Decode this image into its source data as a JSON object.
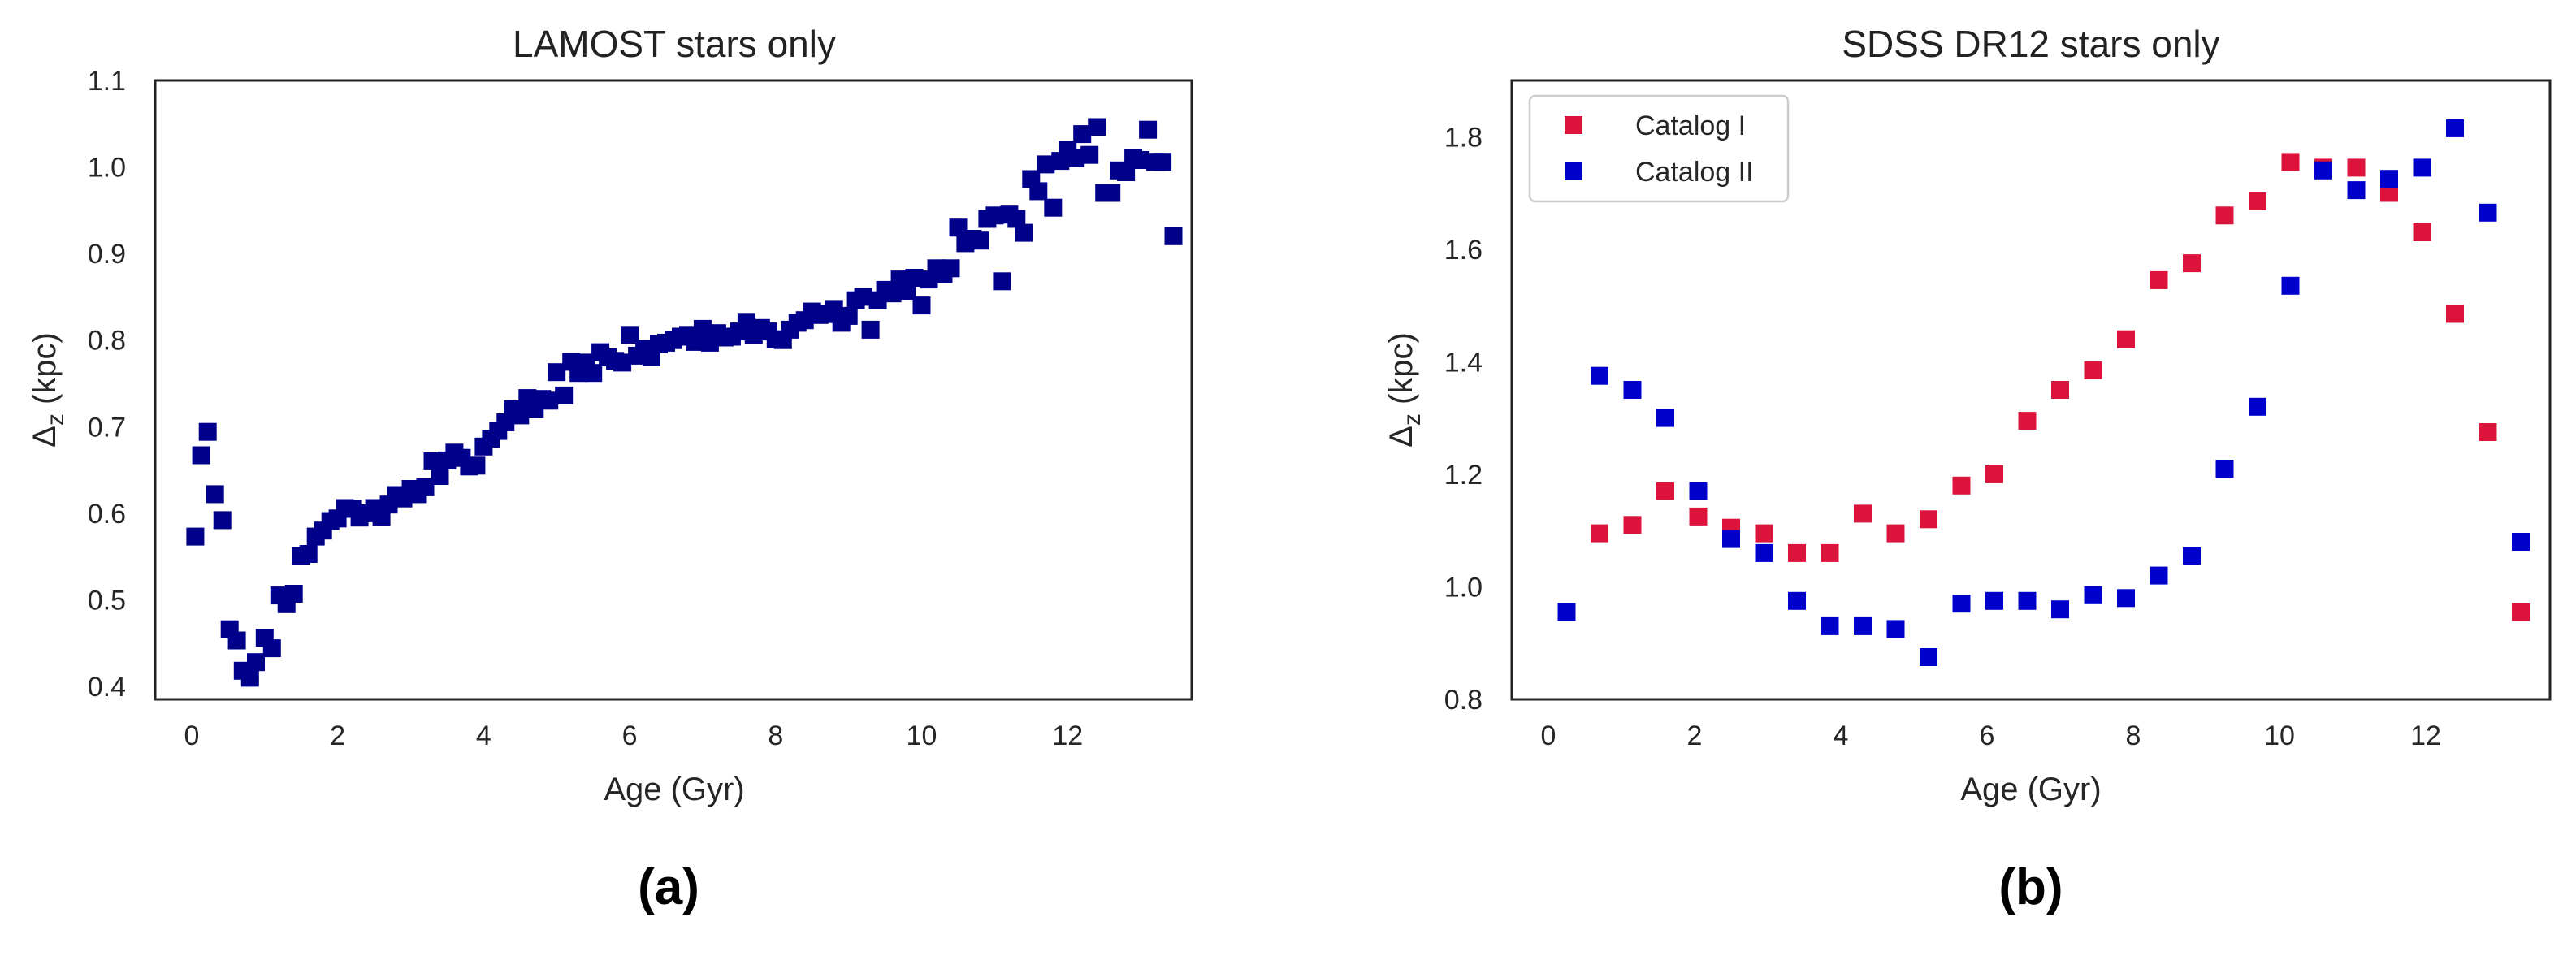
{
  "chart_data": [
    {
      "type": "scatter",
      "title": "LAMOST stars only",
      "xlabel": "Age (Gyr)",
      "ylabel_main": "Δ",
      "ylabel_sub": "z",
      "ylabel_unit": " (kpc)",
      "xlim": [
        -0.5,
        13.7
      ],
      "ylim": [
        0.385,
        1.1
      ],
      "xticks": [
        "0",
        "2",
        "4",
        "6",
        "8",
        "10",
        "12"
      ],
      "yticks": [
        "0.4",
        "0.5",
        "0.6",
        "0.7",
        "0.8",
        "0.9",
        "1.0",
        "1.1"
      ],
      "panel_label": "(a)",
      "grid": false,
      "series": [
        {
          "name": "LAMOST",
          "color": "#00008B",
          "points": [
            [
              0.05,
              0.573
            ],
            [
              0.13,
              0.667
            ],
            [
              0.22,
              0.694
            ],
            [
              0.32,
              0.622
            ],
            [
              0.42,
              0.592
            ],
            [
              0.52,
              0.466
            ],
            [
              0.62,
              0.453
            ],
            [
              0.7,
              0.418
            ],
            [
              0.8,
              0.41
            ],
            [
              0.88,
              0.428
            ],
            [
              1.0,
              0.456
            ],
            [
              1.1,
              0.444
            ],
            [
              1.2,
              0.505
            ],
            [
              1.3,
              0.495
            ],
            [
              1.4,
              0.507
            ],
            [
              1.5,
              0.551
            ],
            [
              1.6,
              0.553
            ],
            [
              1.7,
              0.573
            ],
            [
              1.8,
              0.58
            ],
            [
              1.9,
              0.591
            ],
            [
              2.0,
              0.594
            ],
            [
              2.1,
              0.606
            ],
            [
              2.2,
              0.605
            ],
            [
              2.3,
              0.595
            ],
            [
              2.4,
              0.6
            ],
            [
              2.5,
              0.606
            ],
            [
              2.6,
              0.596
            ],
            [
              2.7,
              0.61
            ],
            [
              2.8,
              0.621
            ],
            [
              2.9,
              0.617
            ],
            [
              3.0,
              0.628
            ],
            [
              3.1,
              0.622
            ],
            [
              3.2,
              0.63
            ],
            [
              3.3,
              0.66
            ],
            [
              3.4,
              0.643
            ],
            [
              3.5,
              0.661
            ],
            [
              3.6,
              0.67
            ],
            [
              3.7,
              0.664
            ],
            [
              3.8,
              0.654
            ],
            [
              3.9,
              0.655
            ],
            [
              4.0,
              0.677
            ],
            [
              4.1,
              0.686
            ],
            [
              4.2,
              0.695
            ],
            [
              4.3,
              0.705
            ],
            [
              4.4,
              0.72
            ],
            [
              4.5,
              0.713
            ],
            [
              4.6,
              0.733
            ],
            [
              4.7,
              0.72
            ],
            [
              4.8,
              0.732
            ],
            [
              4.9,
              0.73
            ],
            [
              5.0,
              0.763
            ],
            [
              5.1,
              0.736
            ],
            [
              5.2,
              0.775
            ],
            [
              5.3,
              0.762
            ],
            [
              5.4,
              0.774
            ],
            [
              5.5,
              0.762
            ],
            [
              5.6,
              0.786
            ],
            [
              5.7,
              0.78
            ],
            [
              5.8,
              0.776
            ],
            [
              5.9,
              0.774
            ],
            [
              6.0,
              0.806
            ],
            [
              6.1,
              0.782
            ],
            [
              6.2,
              0.79
            ],
            [
              6.3,
              0.78
            ],
            [
              6.4,
              0.795
            ],
            [
              6.5,
              0.797
            ],
            [
              6.6,
              0.8
            ],
            [
              6.7,
              0.804
            ],
            [
              6.8,
              0.806
            ],
            [
              6.9,
              0.798
            ],
            [
              7.0,
              0.813
            ],
            [
              7.1,
              0.797
            ],
            [
              7.2,
              0.808
            ],
            [
              7.3,
              0.803
            ],
            [
              7.4,
              0.804
            ],
            [
              7.5,
              0.81
            ],
            [
              7.6,
              0.821
            ],
            [
              7.7,
              0.806
            ],
            [
              7.8,
              0.814
            ],
            [
              7.9,
              0.81
            ],
            [
              8.0,
              0.801
            ],
            [
              8.1,
              0.8
            ],
            [
              8.2,
              0.812
            ],
            [
              8.3,
              0.82
            ],
            [
              8.4,
              0.823
            ],
            [
              8.5,
              0.833
            ],
            [
              8.6,
              0.829
            ],
            [
              8.7,
              0.83
            ],
            [
              8.8,
              0.836
            ],
            [
              8.9,
              0.82
            ],
            [
              9.0,
              0.828
            ],
            [
              9.1,
              0.846
            ],
            [
              9.2,
              0.85
            ],
            [
              9.3,
              0.812
            ],
            [
              9.4,
              0.846
            ],
            [
              9.5,
              0.858
            ],
            [
              9.6,
              0.854
            ],
            [
              9.7,
              0.87
            ],
            [
              9.8,
              0.857
            ],
            [
              9.9,
              0.872
            ],
            [
              10.0,
              0.84
            ],
            [
              10.1,
              0.87
            ],
            [
              10.2,
              0.883
            ],
            [
              10.3,
              0.876
            ],
            [
              10.4,
              0.883
            ],
            [
              10.5,
              0.93
            ],
            [
              10.6,
              0.912
            ],
            [
              10.7,
              0.917
            ],
            [
              10.8,
              0.915
            ],
            [
              10.9,
              0.94
            ],
            [
              11.0,
              0.944
            ],
            [
              11.1,
              0.868
            ],
            [
              11.2,
              0.945
            ],
            [
              11.3,
              0.94
            ],
            [
              11.4,
              0.924
            ],
            [
              11.5,
              0.986
            ],
            [
              11.6,
              0.972
            ],
            [
              11.7,
              1.003
            ],
            [
              11.8,
              0.953
            ],
            [
              11.9,
              1.007
            ],
            [
              12.0,
              1.02
            ],
            [
              12.1,
              1.01
            ],
            [
              12.2,
              1.038
            ],
            [
              12.3,
              1.014
            ],
            [
              12.4,
              1.046
            ],
            [
              12.5,
              0.97
            ],
            [
              12.6,
              0.97
            ],
            [
              12.7,
              0.996
            ],
            [
              12.8,
              0.994
            ],
            [
              12.9,
              1.01
            ],
            [
              13.0,
              1.008
            ],
            [
              13.1,
              1.043
            ],
            [
              13.2,
              1.006
            ],
            [
              13.3,
              1.006
            ],
            [
              13.45,
              0.92
            ]
          ]
        }
      ]
    },
    {
      "type": "scatter",
      "title": "SDSS DR12 stars only",
      "xlabel": "Age (Gyr)",
      "ylabel_main": "Δ",
      "ylabel_sub": "z",
      "ylabel_unit": " (kpc)",
      "xlim": [
        -0.5,
        13.7
      ],
      "ylim": [
        0.8,
        1.9
      ],
      "xticks": [
        "0",
        "2",
        "4",
        "6",
        "8",
        "10",
        "12"
      ],
      "yticks": [
        "0.8",
        "1.0",
        "1.2",
        "1.4",
        "1.6",
        "1.8"
      ],
      "panel_label": "(b)",
      "grid": false,
      "legend_position": "upper-left",
      "series": [
        {
          "name": "Catalog I",
          "color": "#DC143C",
          "points": [
            [
              0.7,
              1.095
            ],
            [
              1.15,
              1.11
            ],
            [
              1.6,
              1.17
            ],
            [
              2.05,
              1.125
            ],
            [
              2.5,
              1.105
            ],
            [
              2.95,
              1.095
            ],
            [
              3.4,
              1.06
            ],
            [
              3.85,
              1.06
            ],
            [
              4.3,
              1.13
            ],
            [
              4.75,
              1.095
            ],
            [
              5.2,
              1.12
            ],
            [
              5.65,
              1.18
            ],
            [
              6.1,
              1.2
            ],
            [
              6.55,
              1.295
            ],
            [
              7.0,
              1.35
            ],
            [
              7.45,
              1.385
            ],
            [
              7.9,
              1.44
            ],
            [
              8.35,
              1.545
            ],
            [
              8.8,
              1.575
            ],
            [
              9.25,
              1.66
            ],
            [
              9.7,
              1.685
            ],
            [
              10.15,
              1.755
            ],
            [
              10.6,
              1.745
            ],
            [
              11.05,
              1.745
            ],
            [
              11.5,
              1.7
            ],
            [
              11.95,
              1.63
            ],
            [
              12.4,
              1.485
            ],
            [
              12.85,
              1.275
            ],
            [
              13.3,
              0.955
            ]
          ]
        },
        {
          "name": "Catalog II",
          "color": "#0000CD",
          "points": [
            [
              0.25,
              0.955
            ],
            [
              0.7,
              1.375
            ],
            [
              1.15,
              1.35
            ],
            [
              1.6,
              1.3
            ],
            [
              2.05,
              1.17
            ],
            [
              2.5,
              1.085
            ],
            [
              2.95,
              1.06
            ],
            [
              3.4,
              0.975
            ],
            [
              3.85,
              0.93
            ],
            [
              4.3,
              0.93
            ],
            [
              4.75,
              0.925
            ],
            [
              5.2,
              0.875
            ],
            [
              5.65,
              0.97
            ],
            [
              6.1,
              0.975
            ],
            [
              6.55,
              0.975
            ],
            [
              7.0,
              0.96
            ],
            [
              7.45,
              0.985
            ],
            [
              7.9,
              0.98
            ],
            [
              8.35,
              1.02
            ],
            [
              8.8,
              1.055
            ],
            [
              9.25,
              1.21
            ],
            [
              9.7,
              1.32
            ],
            [
              10.15,
              1.535
            ],
            [
              10.6,
              1.74
            ],
            [
              11.05,
              1.705
            ],
            [
              11.5,
              1.725
            ],
            [
              11.95,
              1.745
            ],
            [
              12.4,
              1.815
            ],
            [
              12.85,
              1.665
            ],
            [
              13.3,
              1.08
            ]
          ]
        }
      ]
    }
  ]
}
